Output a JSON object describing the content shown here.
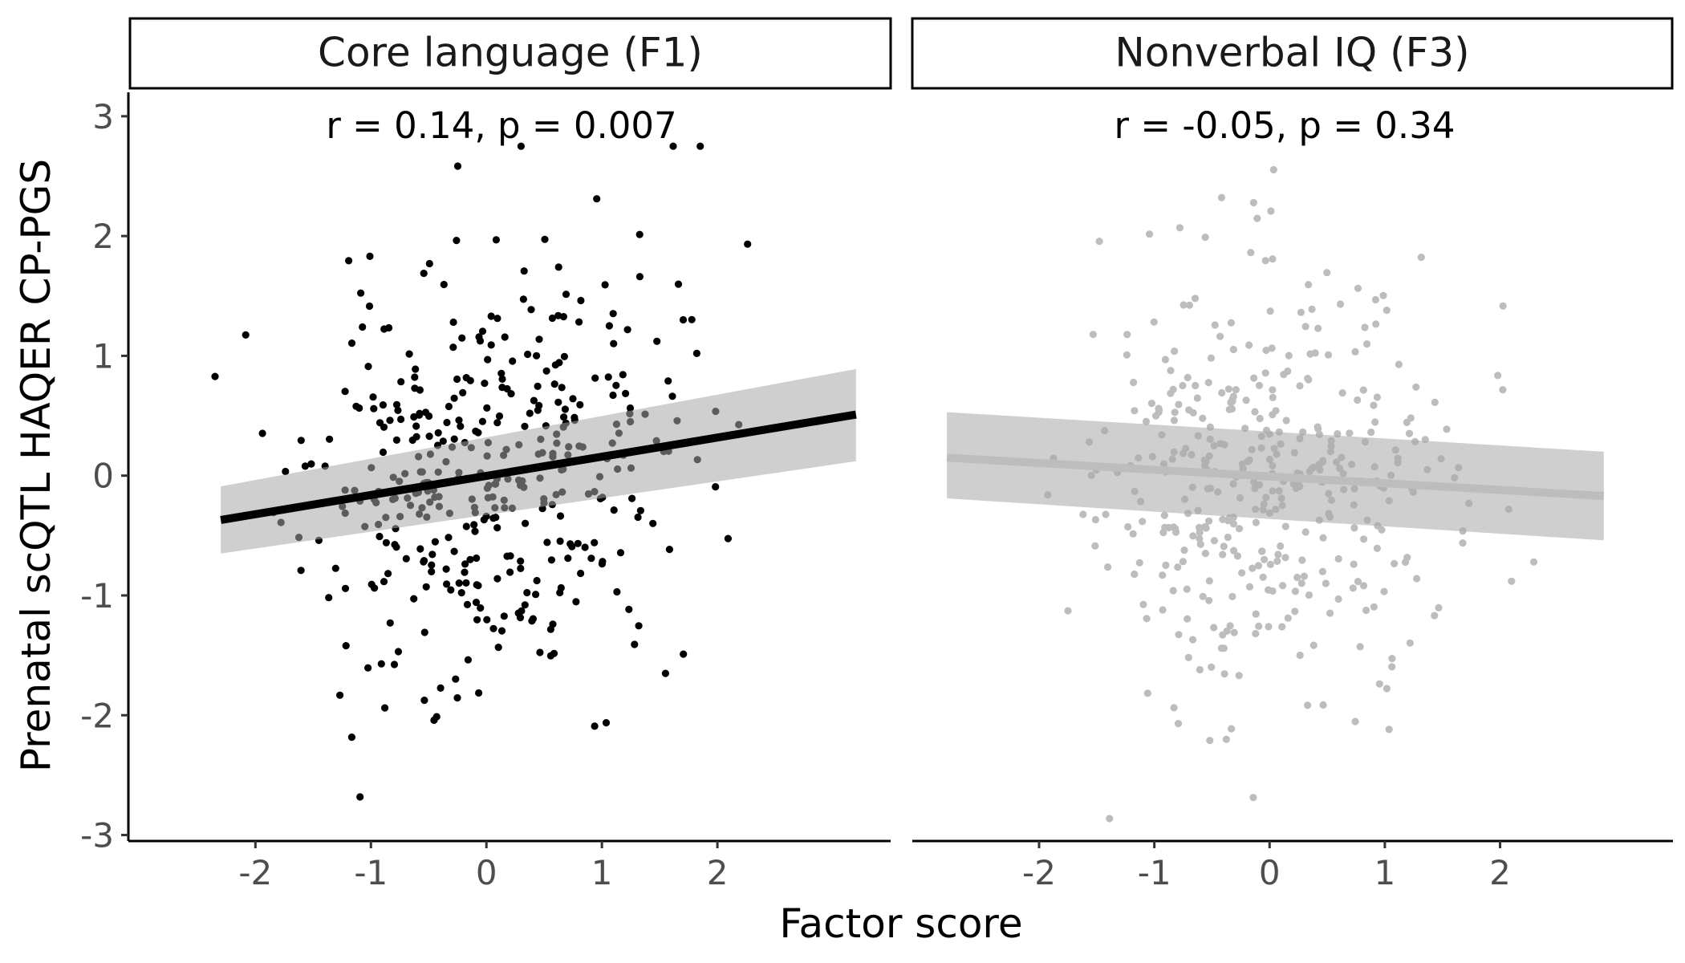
{
  "figure": {
    "ylabel": "Prenatal scQTL HAQER CP-PGS",
    "xlabel": "Factor score"
  },
  "chart_data": [
    {
      "type": "scatter",
      "title": "Core language (F1)",
      "annotation": "r = 0.14, p = 0.007",
      "xlim": [
        -3.1,
        3.5
      ],
      "ylim": [
        -3.05,
        3.2
      ],
      "xticks": [
        -2,
        -1,
        0,
        1,
        2
      ],
      "yticks": [
        -3,
        -2,
        -1,
        0,
        1,
        2,
        3
      ],
      "point_color": "#000000",
      "line_color": "#000000",
      "fit": {
        "x": [
          -2.3,
          3.2
        ],
        "y": [
          -0.37,
          0.51
        ],
        "ci_lo": [
          -0.65,
          0.12
        ],
        "ci_hi": [
          -0.09,
          0.89
        ]
      },
      "seed": 11
    },
    {
      "type": "scatter",
      "title": "Nonverbal IQ (F3)",
      "annotation": "r = -0.05, p = 0.34",
      "xlim": [
        -3.1,
        3.5
      ],
      "ylim": [
        -3.05,
        3.2
      ],
      "xticks": [
        -2,
        -1,
        0,
        1,
        2
      ],
      "yticks": [],
      "point_color": "#bdbdbd",
      "line_color": "#bdbdbd",
      "fit": {
        "x": [
          -2.8,
          2.9
        ],
        "y": [
          0.15,
          -0.17
        ],
        "ci_lo": [
          -0.19,
          -0.54
        ],
        "ci_hi": [
          0.53,
          0.2
        ]
      },
      "seed": 29
    }
  ]
}
